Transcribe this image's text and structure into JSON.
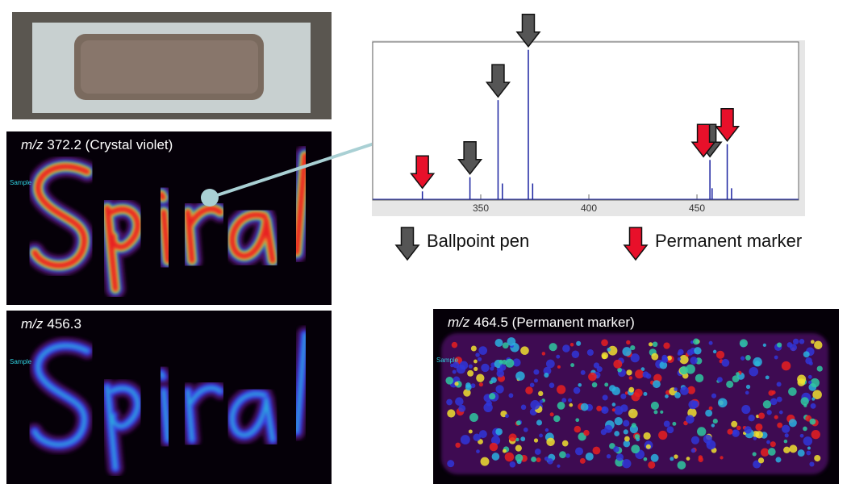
{
  "panels": [
    {
      "prefix": "m/z",
      "label": "372.2 (Crystal violet)",
      "tag": "Sample"
    },
    {
      "prefix": "m/z",
      "label": "456.3",
      "tag": "Sample"
    },
    {
      "prefix": "m/z",
      "label": "464.5 (Permanent marker)",
      "tag": "Sample"
    }
  ],
  "chart_data": {
    "type": "stick",
    "x": [
      323,
      345,
      358,
      360,
      372,
      374,
      456,
      457,
      464,
      466
    ],
    "values": [
      5,
      14,
      63,
      10,
      95,
      10,
      25,
      7,
      35,
      7
    ],
    "color": "#1a22a0",
    "xlim": [
      300,
      497
    ],
    "ylim": [
      0,
      100
    ],
    "xticks": [
      350,
      400,
      450
    ],
    "series": [
      {
        "name": "Ballpoint pen",
        "color": "#555555",
        "x": [
          345,
          358,
          372,
          456
        ]
      },
      {
        "name": "Permanent marker",
        "color": "#e8102a",
        "x": [
          323,
          453,
          464
        ]
      }
    ]
  }
}
